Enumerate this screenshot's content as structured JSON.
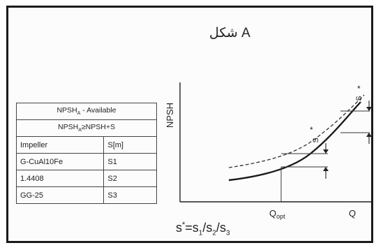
{
  "title": "شكل A",
  "table": {
    "header_available": "NPSH_A - Available",
    "header_condition": "NPSH_A≥NPSH+S",
    "columns": [
      "Impeller",
      "S[m]"
    ],
    "rows": [
      [
        "G-CuAl10Fe",
        "S1"
      ],
      [
        "1.4408",
        "S2"
      ],
      [
        "GG-25",
        "S3"
      ]
    ]
  },
  "graph": {
    "y_axis_label": "NPSH",
    "x_axis_label": "Q",
    "x_marker_label": "Q_opt",
    "s_label": "S",
    "s_star_label": "S*",
    "star_mark": "*"
  },
  "formula": "s* = s1/s2/s3"
}
